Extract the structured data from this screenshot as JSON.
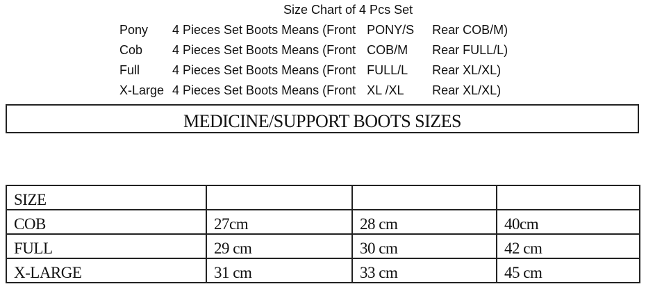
{
  "title": "Size Chart of 4 Pcs Set",
  "sets": [
    {
      "name": "Pony",
      "desc": "4 Pieces Set Boots Means (Front",
      "front": "PONY/S",
      "rear": "Rear COB/M)"
    },
    {
      "name": "Cob",
      "desc": "4 Pieces Set Boots Means (Front",
      "front": "COB/M",
      "rear": "Rear FULL/L)"
    },
    {
      "name": "Full",
      "desc": "4 Pieces Set Boots Means (Front",
      "front": "FULL/L",
      "rear": "Rear XL/XL)"
    },
    {
      "name": "X-Large",
      "desc": "4 Pieces Set Boots Means (Front",
      "front": "XL /XL",
      "rear": "Rear XL/XL)"
    }
  ],
  "section_title": "MEDICINE/SUPPORT BOOTS SIZES",
  "table": {
    "header": [
      "SIZE",
      "",
      "",
      ""
    ],
    "rows": [
      [
        "COB",
        "27cm",
        "28 cm",
        "40cm"
      ],
      [
        "FULL",
        "29 cm",
        "30 cm",
        "42 cm"
      ],
      [
        "X-LARGE",
        "31 cm",
        "33 cm",
        "45 cm"
      ]
    ]
  }
}
